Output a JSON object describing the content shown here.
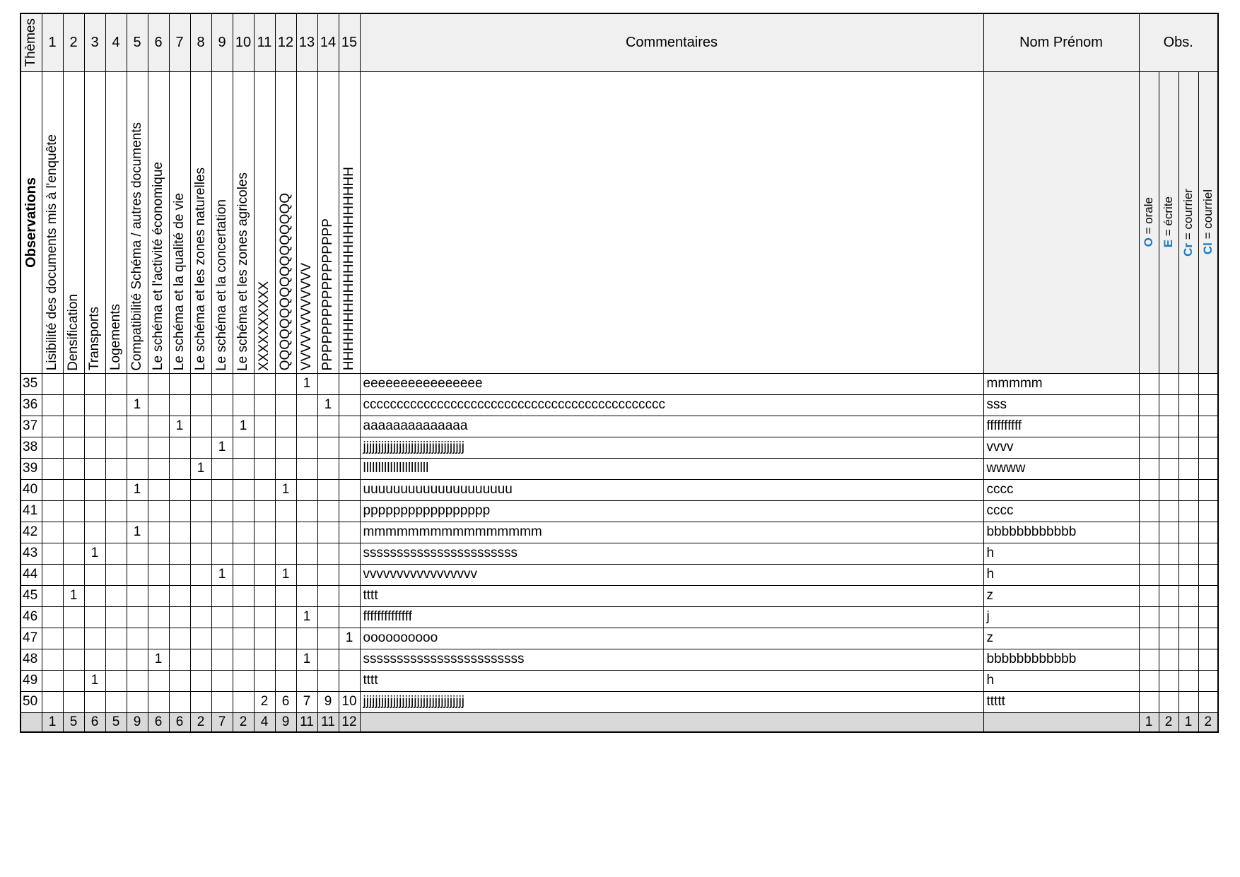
{
  "header": {
    "themes_label": "Thèmes",
    "observations_label": "Observations",
    "commentaires_label": "Commentaires",
    "nom_prenom_label": "Nom Prénom",
    "obs_label": "Obs.",
    "theme_numbers": [
      "1",
      "2",
      "3",
      "4",
      "5",
      "6",
      "7",
      "8",
      "9",
      "10",
      "11",
      "12",
      "13",
      "14",
      "15"
    ],
    "theme_titles": [
      "Lisibilité des documents mis à l'enquête",
      "Densification",
      "Transports",
      "Logements",
      "Compatibilité Schéma / autres documents",
      "Le schéma et l'activité économique",
      "Le schéma et la qualité de vie",
      "Le schéma et les zones naturelles",
      "Le schéma et la concertation",
      "Le schéma et les zones agricoles",
      "XXXXXXXXXX",
      "QQQQQQQQQQQQQQQQQ",
      "VVVVVVVVVVVV",
      "PPPPPPPPPPPPPPPPP",
      "HHHHHHHHHHHHHHHHHHHHH"
    ],
    "obs_legend": [
      {
        "key": "O",
        "rest": " = orale"
      },
      {
        "key": "E",
        "rest": " = écrite"
      },
      {
        "key": "Cr",
        "rest": " = courrier"
      },
      {
        "key": "Cl",
        "rest": " = courriel"
      }
    ]
  },
  "rows": [
    {
      "num": "35",
      "marks": [
        "",
        "",
        "",
        "",
        "",
        "",
        "",
        "",
        "",
        "",
        "",
        "",
        "1",
        "",
        ""
      ],
      "comment": "eeeeeeeeeeeeeeee",
      "name": "mmmmm",
      "obs": [
        "",
        "",
        "",
        ""
      ]
    },
    {
      "num": "36",
      "marks": [
        "",
        "",
        "",
        "",
        "1",
        "",
        "",
        "",
        "",
        "",
        "",
        "",
        "",
        "1",
        ""
      ],
      "comment": "ccccccccccccccccccccccccccccccccccccccccccccc",
      "name": "sss",
      "obs": [
        "",
        "",
        "",
        ""
      ]
    },
    {
      "num": "37",
      "marks": [
        "",
        "",
        "",
        "",
        "",
        "",
        "1",
        "",
        "",
        "1",
        "",
        "",
        "",
        "",
        ""
      ],
      "comment": "aaaaaaaaaaaaaa",
      "name": "ffffffffff",
      "obs": [
        "",
        "",
        "",
        ""
      ]
    },
    {
      "num": "38",
      "marks": [
        "",
        "",
        "",
        "",
        "",
        "",
        "",
        "",
        "1",
        "",
        "",
        "",
        "",
        "",
        ""
      ],
      "comment": "jjjjjjjjjjjjjjjjjjjjjjjjjjjjjjjjjj",
      "name": "vvvv",
      "obs": [
        "",
        "",
        "",
        ""
      ]
    },
    {
      "num": "39",
      "marks": [
        "",
        "",
        "",
        "",
        "",
        "",
        "",
        "1",
        "",
        "",
        "",
        "",
        "",
        "",
        ""
      ],
      "comment": "llllllllllllllllllllll",
      "name": "wwww",
      "obs": [
        "",
        "",
        "",
        ""
      ]
    },
    {
      "num": "40",
      "marks": [
        "",
        "",
        "",
        "",
        "1",
        "",
        "",
        "",
        "",
        "",
        "",
        "1",
        "",
        "",
        ""
      ],
      "comment": "uuuuuuuuuuuuuuuuuuuu",
      "name": "cccc",
      "obs": [
        "",
        "",
        "",
        ""
      ]
    },
    {
      "num": "41",
      "marks": [
        "",
        "",
        "",
        "",
        "",
        "",
        "",
        "",
        "",
        "",
        "",
        "",
        "",
        "",
        ""
      ],
      "comment": "ppppppppppppppppp",
      "name": "cccc",
      "obs": [
        "",
        "",
        "",
        ""
      ]
    },
    {
      "num": "42",
      "marks": [
        "",
        "",
        "",
        "",
        "1",
        "",
        "",
        "",
        "",
        "",
        "",
        "",
        "",
        "",
        ""
      ],
      "comment": "mmmmmmmmmmmmmmmm",
      "name": "bbbbbbbbbbbb",
      "obs": [
        "",
        "",
        "",
        ""
      ]
    },
    {
      "num": "43",
      "marks": [
        "",
        "",
        "1",
        "",
        "",
        "",
        "",
        "",
        "",
        "",
        "",
        "",
        "",
        "",
        ""
      ],
      "comment": "sssssssssssssssssssssss",
      "name": "h",
      "obs": [
        "",
        "",
        "",
        ""
      ]
    },
    {
      "num": "44",
      "marks": [
        "",
        "",
        "",
        "",
        "",
        "",
        "",
        "",
        "1",
        "",
        "",
        "1",
        "",
        "",
        ""
      ],
      "comment": "vvvvvvvvvvvvvvvvv",
      "name": "h",
      "obs": [
        "",
        "",
        "",
        ""
      ]
    },
    {
      "num": "45",
      "marks": [
        "",
        "1",
        "",
        "",
        "",
        "",
        "",
        "",
        "",
        "",
        "",
        "",
        "",
        "",
        ""
      ],
      "comment": "tttt",
      "name": "z",
      "obs": [
        "",
        "",
        "",
        ""
      ]
    },
    {
      "num": "46",
      "marks": [
        "",
        "",
        "",
        "",
        "",
        "",
        "",
        "",
        "",
        "",
        "",
        "",
        "1",
        "",
        ""
      ],
      "comment": "ffffffffffffff",
      "name": "j",
      "obs": [
        "",
        "",
        "",
        ""
      ]
    },
    {
      "num": "47",
      "marks": [
        "",
        "",
        "",
        "",
        "",
        "",
        "",
        "",
        "",
        "",
        "",
        "",
        "",
        "",
        "1"
      ],
      "comment": "oooooooooo",
      "name": "z",
      "obs": [
        "",
        "",
        "",
        ""
      ]
    },
    {
      "num": "48",
      "marks": [
        "",
        "",
        "",
        "",
        "",
        "1",
        "",
        "",
        "",
        "",
        "",
        "",
        "1",
        "",
        ""
      ],
      "comment": "ssssssssssssssssssssssss",
      "name": "bbbbbbbbbbbb",
      "obs": [
        "",
        "",
        "",
        ""
      ]
    },
    {
      "num": "49",
      "marks": [
        "",
        "",
        "1",
        "",
        "",
        "",
        "",
        "",
        "",
        "",
        "",
        "",
        "",
        "",
        ""
      ],
      "comment": "tttt",
      "name": "h",
      "obs": [
        "",
        "",
        "",
        ""
      ]
    },
    {
      "num": "50",
      "marks": [
        "",
        "",
        "",
        "",
        "",
        "",
        "",
        "",
        "",
        "",
        "2",
        "6",
        "7",
        "9",
        "10"
      ],
      "comment": "jjjjjjjjjjjjjjjjjjjjjjjjjjjjjjjjjj",
      "name": "ttttt",
      "obs": [
        "",
        "",
        "",
        ""
      ]
    }
  ],
  "totals": {
    "theme_totals": [
      "1",
      "5",
      "6",
      "5",
      "9",
      "6",
      "6",
      "2",
      "7",
      "2",
      "4",
      "9",
      "11",
      "11",
      "12"
    ],
    "obs_totals": [
      "1",
      "2",
      "1",
      "2"
    ]
  },
  "colors": {
    "accent_blue": "#1879c0",
    "header_bg": "#f0f0f0",
    "name_header_bg": "#f1f1f1",
    "totals_bg": "#d9d9d9"
  }
}
